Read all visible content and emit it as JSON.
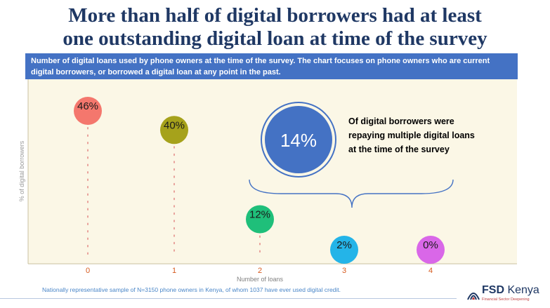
{
  "slide": {
    "title_line1": "More than half of digital borrowers had at least",
    "title_line2": "one outstanding digital loan at time of the survey",
    "subtitle": "Number of digital loans used by phone owners at the time of the survey. The chart focuses on phone owners who are current digital borrowers, or borrowed a digital loan at any point in the past.",
    "footnote": "Nationally representative sample of N=3150 phone owners in Kenya, of whom 1037 have ever used digital credit."
  },
  "callout": {
    "value": "14%",
    "text": "Of digital borrowers were repaying multiple digital loans at the time of the survey"
  },
  "logo": {
    "brand_bold": "FSD",
    "brand_rest": "Kenya",
    "tagline": "Financial Sector Deepening"
  },
  "chart_data": {
    "type": "scatter",
    "xlabel": "Number of loans",
    "ylabel": "% of digital borrowers",
    "categories": [
      "0",
      "1",
      "2",
      "3",
      "4"
    ],
    "values": [
      46,
      40,
      12,
      2,
      0
    ],
    "labels": [
      "46%",
      "40%",
      "12%",
      "2%",
      "0%"
    ],
    "colors": [
      "#f4776d",
      "#a6a21b",
      "#1fbf7a",
      "#24b4e8",
      "#d967e8"
    ],
    "ylim": [
      0,
      50
    ],
    "background": "#fbf7e6",
    "grid": false
  },
  "colors": {
    "title": "#1f3864",
    "subtitle_bar": "#4472c4",
    "callout_circle": "#4472c4",
    "bracket": "#4472c4",
    "stem": "#e8a09a"
  }
}
